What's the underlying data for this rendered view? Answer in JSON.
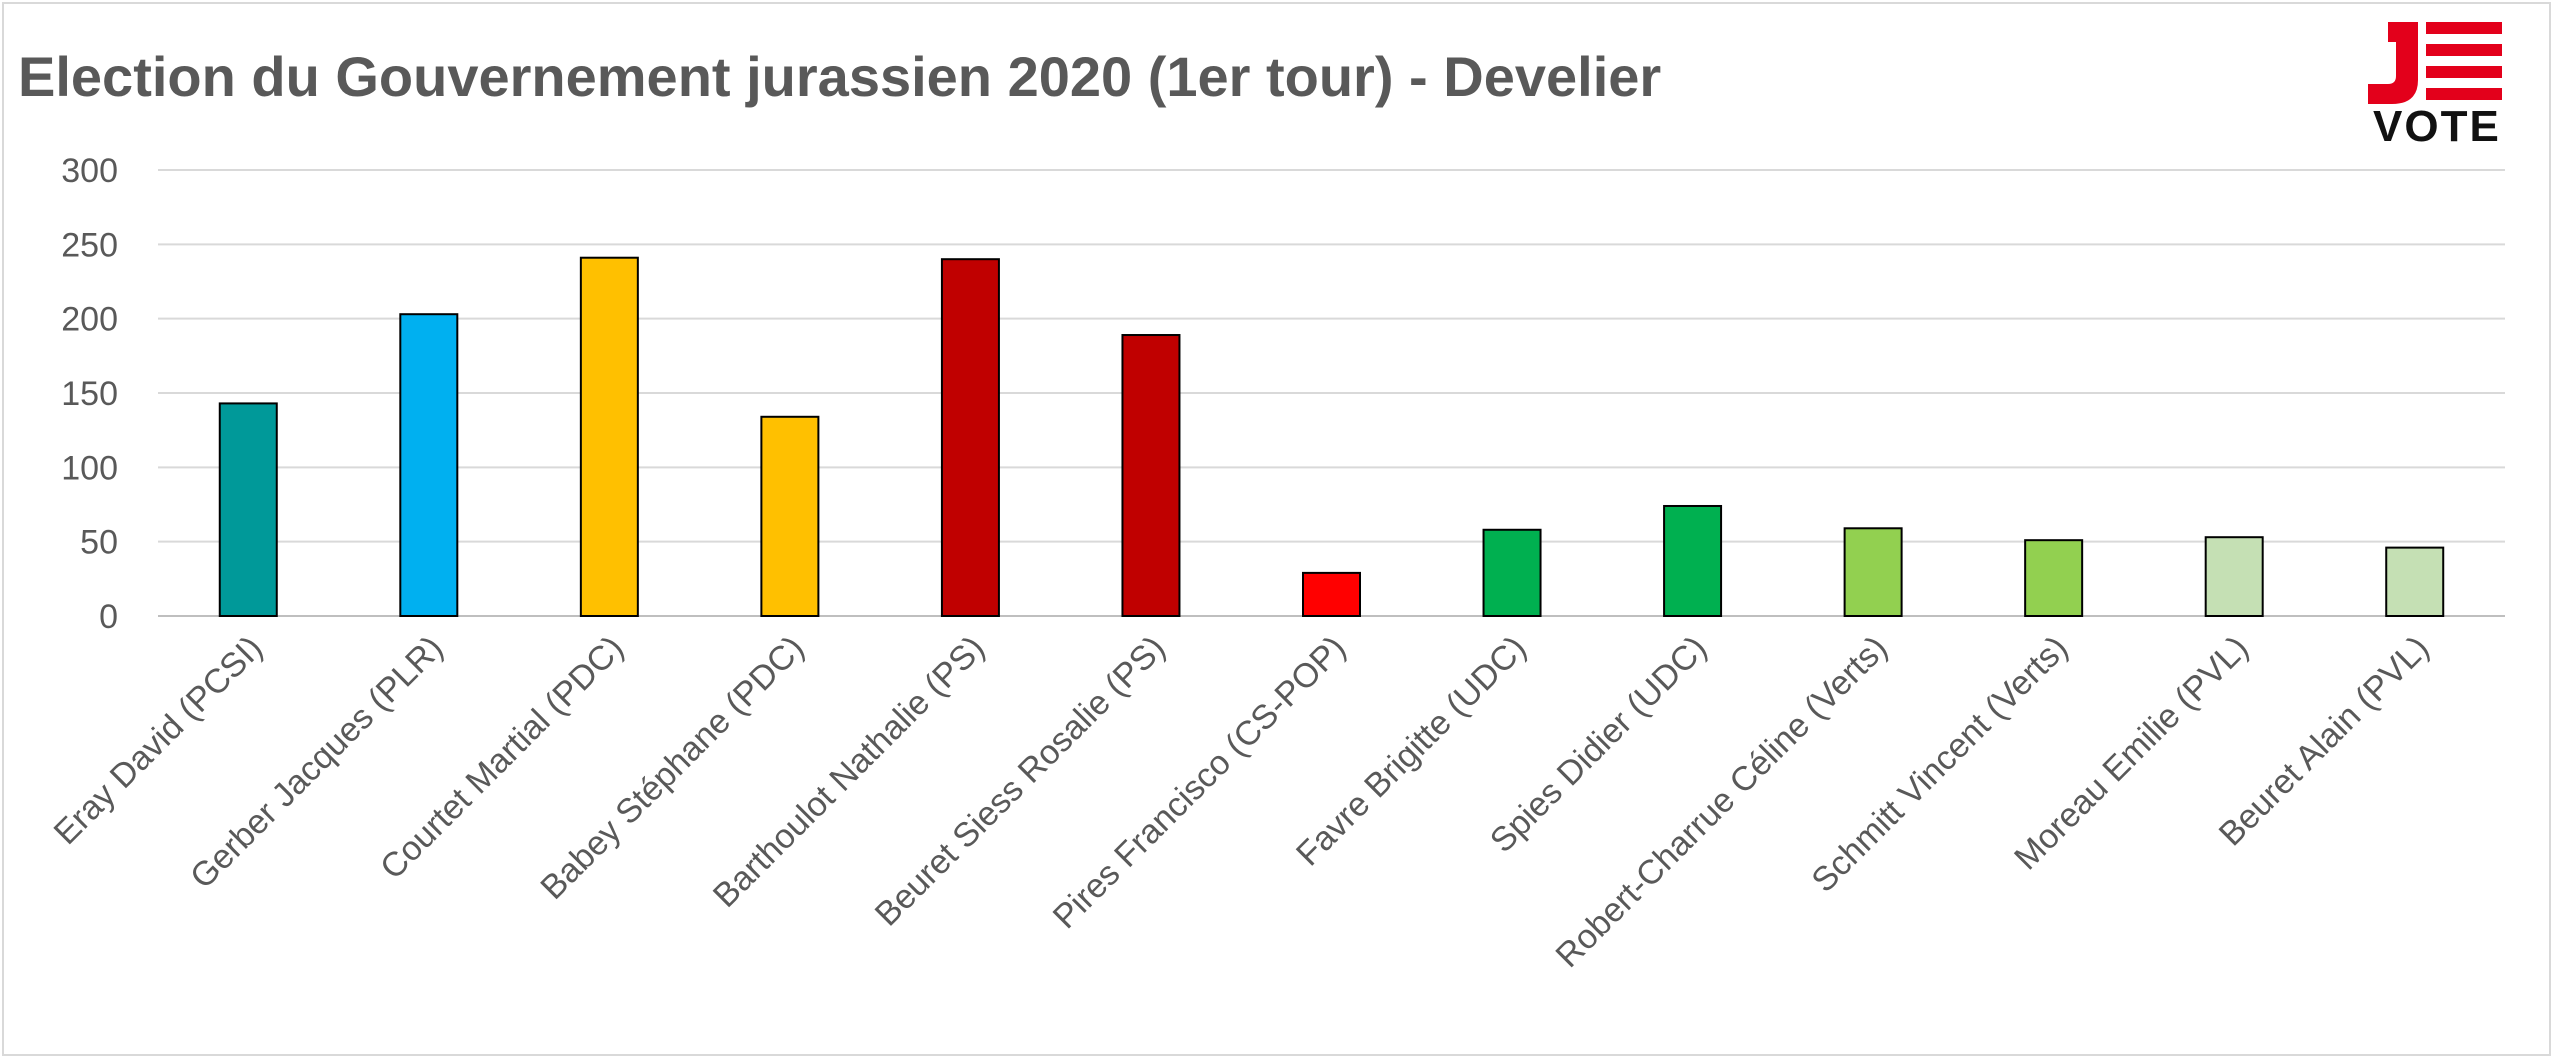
{
  "chart_data": {
    "type": "bar",
    "title": "Election du Gouvernement jurassien 2020 (1er tour) - Develier",
    "ylim": [
      0,
      300
    ],
    "yticks": [
      0,
      50,
      100,
      150,
      200,
      250,
      300
    ],
    "grid": true,
    "categories": [
      "Eray David (PCSI)",
      "Gerber Jacques (PLR)",
      "Courtet Martial (PDC)",
      "Babey Stéphane (PDC)",
      "Barthoulot Nathalie (PS)",
      "Beuret Siess Rosalie (PS)",
      "Pires Francisco (CS-POP)",
      "Favre Brigitte (UDC)",
      "Spies Didier (UDC)",
      "Robert-Charrue Céline (Verts)",
      "Schmitt Vincent (Verts)",
      "Moreau Emilie (PVL)",
      "Beuret Alain (PVL)"
    ],
    "values": [
      143,
      203,
      241,
      134,
      240,
      189,
      29,
      58,
      74,
      59,
      51,
      53,
      46
    ],
    "colors": [
      "#009999",
      "#00b0f0",
      "#ffc000",
      "#ffc000",
      "#c00000",
      "#c00000",
      "#ff0000",
      "#00b050",
      "#00b050",
      "#92d050",
      "#92d050",
      "#c5e0b4",
      "#c5e0b4"
    ]
  },
  "logo": {
    "top": "JE",
    "bottom": "VOTE",
    "red": "#e3001b",
    "black": "#111111"
  }
}
